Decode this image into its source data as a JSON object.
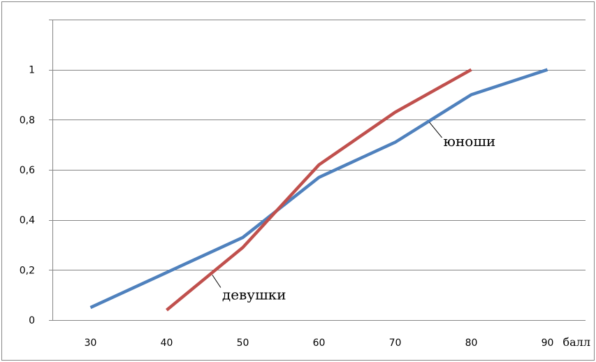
{
  "chart_data": {
    "type": "line",
    "title": "",
    "xlabel": "балл",
    "ylabel": "",
    "xlim": [
      25,
      95
    ],
    "ylim": [
      0,
      1.2
    ],
    "x_ticks": [
      30,
      40,
      50,
      60,
      70,
      80,
      90
    ],
    "x_tick_labels": [
      "30",
      "40",
      "50",
      "60",
      "70",
      "80",
      "90"
    ],
    "y_ticks": [
      0,
      0.2,
      0.4,
      0.6,
      0.8,
      1
    ],
    "y_tick_labels": [
      "0",
      "0,2",
      "0,4",
      "0,6",
      "0,8",
      "1"
    ],
    "grid": true,
    "legend": "none",
    "series": [
      {
        "name": "юноши",
        "color": "#4f81bd",
        "x": [
          30,
          40,
          50,
          60,
          70,
          80,
          90
        ],
        "y": [
          0.05,
          0.19,
          0.33,
          0.57,
          0.71,
          0.9,
          1.0
        ]
      },
      {
        "name": "девушки",
        "color": "#c0504d",
        "x": [
          40,
          50,
          60,
          70,
          80
        ],
        "y": [
          0.04,
          0.29,
          0.62,
          0.83,
          1.0
        ]
      }
    ],
    "annotations": [
      {
        "text": "юноши",
        "series": 0,
        "point": [
          74.5,
          0.79
        ]
      },
      {
        "text": "девушки",
        "series": 1,
        "point": [
          46,
          0.18
        ]
      }
    ]
  }
}
